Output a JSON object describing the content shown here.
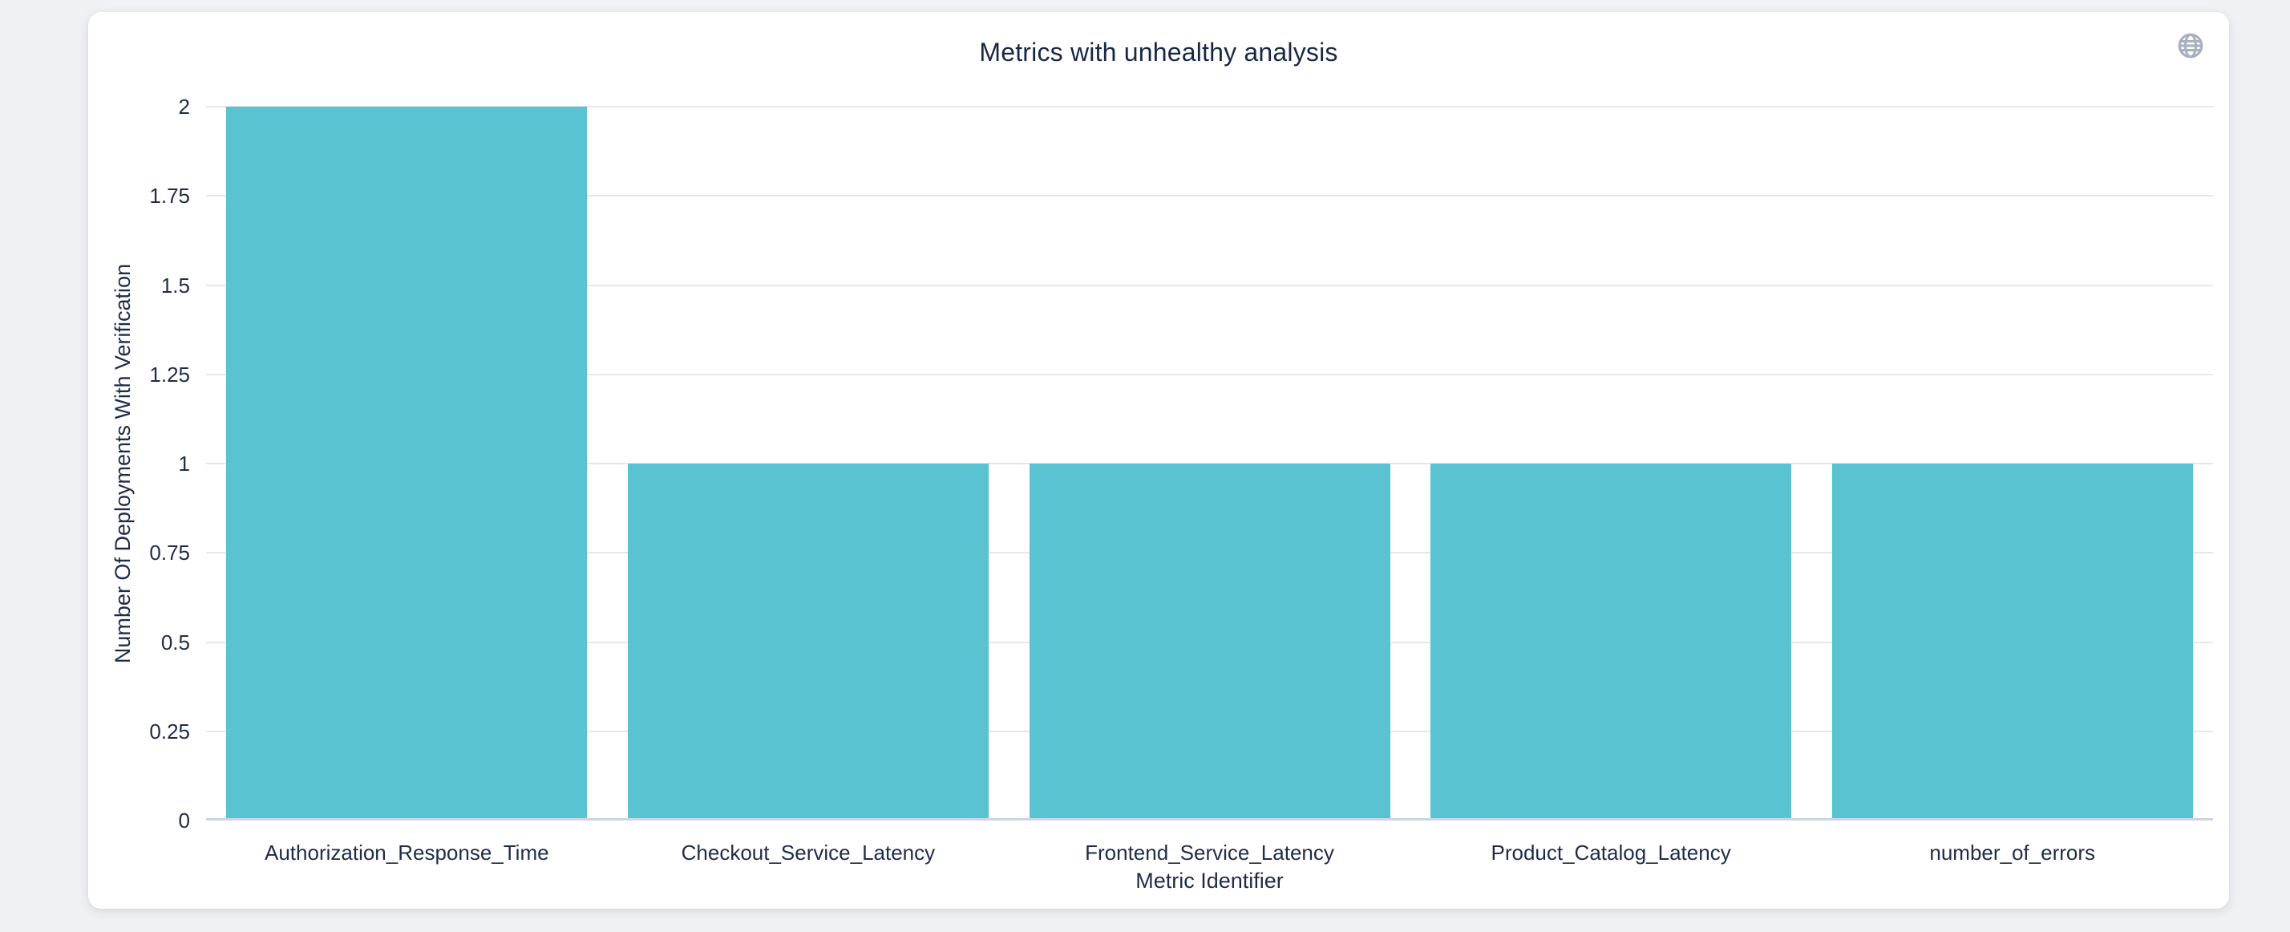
{
  "page": {
    "background_color": "#eff1f5",
    "card_color": "#ffffff"
  },
  "header": {
    "globe_icon": "globe"
  },
  "chart_data": {
    "type": "bar",
    "title": "Metrics with unhealthy analysis",
    "categories": [
      "Authorization_Response_Time",
      "Checkout_Service_Latency",
      "Frontend_Service_Latency",
      "Product_Catalog_Latency",
      "number_of_errors"
    ],
    "values": [
      2,
      1,
      1,
      1,
      1
    ],
    "xlabel": "Metric Identifier",
    "ylabel": "Number Of Deployments With Verification",
    "ylim": [
      0,
      2
    ],
    "yticks": [
      "0",
      "0.25",
      "0.5",
      "0.75",
      "1",
      "1.25",
      "1.5",
      "1.75",
      "2"
    ],
    "grid": true,
    "legend_position": "none",
    "colors": {
      "bar": "#5ac3d1",
      "gridline": "#e6e7ea",
      "axis_line": "#ccd5e8",
      "text": "#1e2c48",
      "title_text": "#1a2744",
      "icon": "#a9b0bf"
    }
  }
}
